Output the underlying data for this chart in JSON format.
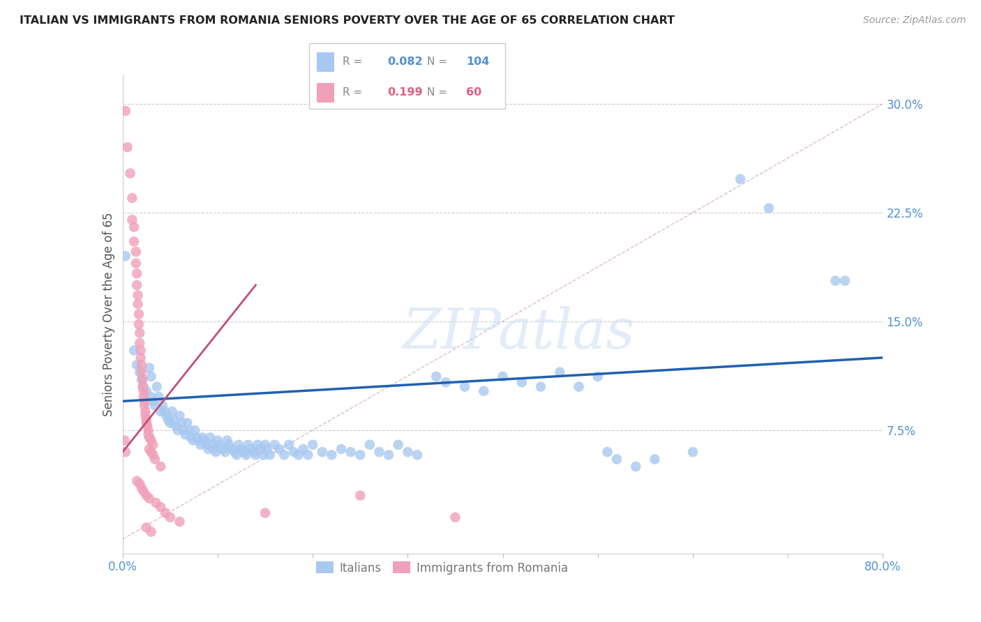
{
  "title": "ITALIAN VS IMMIGRANTS FROM ROMANIA SENIORS POVERTY OVER THE AGE OF 65 CORRELATION CHART",
  "source": "Source: ZipAtlas.com",
  "ylabel": "Seniors Poverty Over the Age of 65",
  "xlim": [
    0.0,
    0.8
  ],
  "ylim": [
    -0.01,
    0.32
  ],
  "ytick_positions": [
    0.075,
    0.15,
    0.225,
    0.3
  ],
  "ytick_labels": [
    "7.5%",
    "15.0%",
    "22.5%",
    "30.0%"
  ],
  "legend_blue_label": "Italians",
  "legend_pink_label": "Immigrants from Romania",
  "R_blue": 0.082,
  "N_blue": 104,
  "R_pink": 0.199,
  "N_pink": 60,
  "color_blue": "#a8c8f0",
  "color_pink": "#f0a0b8",
  "line_blue": "#2060b0",
  "line_pink": "#c05070",
  "watermark": "ZIPatlas",
  "blue_line": [
    [
      0.0,
      0.095
    ],
    [
      0.8,
      0.125
    ]
  ],
  "pink_line": [
    [
      0.0,
      0.06
    ],
    [
      0.14,
      0.175
    ]
  ],
  "diag_line": [
    [
      0.0,
      0.0
    ],
    [
      0.8,
      0.3
    ]
  ],
  "blue_points": [
    [
      0.003,
      0.195
    ],
    [
      0.012,
      0.13
    ],
    [
      0.015,
      0.12
    ],
    [
      0.018,
      0.115
    ],
    [
      0.02,
      0.11
    ],
    [
      0.022,
      0.105
    ],
    [
      0.025,
      0.102
    ],
    [
      0.028,
      0.118
    ],
    [
      0.03,
      0.112
    ],
    [
      0.03,
      0.098
    ],
    [
      0.032,
      0.095
    ],
    [
      0.034,
      0.092
    ],
    [
      0.036,
      0.105
    ],
    [
      0.038,
      0.098
    ],
    [
      0.04,
      0.088
    ],
    [
      0.042,
      0.092
    ],
    [
      0.044,
      0.088
    ],
    [
      0.046,
      0.085
    ],
    [
      0.048,
      0.082
    ],
    [
      0.05,
      0.08
    ],
    [
      0.052,
      0.088
    ],
    [
      0.054,
      0.082
    ],
    [
      0.056,
      0.078
    ],
    [
      0.058,
      0.075
    ],
    [
      0.06,
      0.085
    ],
    [
      0.062,
      0.08
    ],
    [
      0.064,
      0.075
    ],
    [
      0.066,
      0.072
    ],
    [
      0.068,
      0.08
    ],
    [
      0.07,
      0.075
    ],
    [
      0.072,
      0.07
    ],
    [
      0.074,
      0.068
    ],
    [
      0.076,
      0.075
    ],
    [
      0.078,
      0.07
    ],
    [
      0.08,
      0.068
    ],
    [
      0.082,
      0.065
    ],
    [
      0.084,
      0.07
    ],
    [
      0.086,
      0.068
    ],
    [
      0.088,
      0.065
    ],
    [
      0.09,
      0.062
    ],
    [
      0.092,
      0.07
    ],
    [
      0.094,
      0.065
    ],
    [
      0.096,
      0.062
    ],
    [
      0.098,
      0.06
    ],
    [
      0.1,
      0.068
    ],
    [
      0.102,
      0.065
    ],
    [
      0.105,
      0.062
    ],
    [
      0.108,
      0.06
    ],
    [
      0.11,
      0.068
    ],
    [
      0.112,
      0.065
    ],
    [
      0.115,
      0.062
    ],
    [
      0.118,
      0.06
    ],
    [
      0.12,
      0.058
    ],
    [
      0.122,
      0.065
    ],
    [
      0.125,
      0.062
    ],
    [
      0.128,
      0.06
    ],
    [
      0.13,
      0.058
    ],
    [
      0.132,
      0.065
    ],
    [
      0.135,
      0.062
    ],
    [
      0.138,
      0.06
    ],
    [
      0.14,
      0.058
    ],
    [
      0.142,
      0.065
    ],
    [
      0.145,
      0.062
    ],
    [
      0.148,
      0.058
    ],
    [
      0.15,
      0.065
    ],
    [
      0.152,
      0.062
    ],
    [
      0.155,
      0.058
    ],
    [
      0.16,
      0.065
    ],
    [
      0.165,
      0.062
    ],
    [
      0.17,
      0.058
    ],
    [
      0.175,
      0.065
    ],
    [
      0.18,
      0.06
    ],
    [
      0.185,
      0.058
    ],
    [
      0.19,
      0.062
    ],
    [
      0.195,
      0.058
    ],
    [
      0.2,
      0.065
    ],
    [
      0.21,
      0.06
    ],
    [
      0.22,
      0.058
    ],
    [
      0.23,
      0.062
    ],
    [
      0.24,
      0.06
    ],
    [
      0.25,
      0.058
    ],
    [
      0.26,
      0.065
    ],
    [
      0.27,
      0.06
    ],
    [
      0.28,
      0.058
    ],
    [
      0.29,
      0.065
    ],
    [
      0.3,
      0.06
    ],
    [
      0.31,
      0.058
    ],
    [
      0.33,
      0.112
    ],
    [
      0.34,
      0.108
    ],
    [
      0.36,
      0.105
    ],
    [
      0.38,
      0.102
    ],
    [
      0.4,
      0.112
    ],
    [
      0.42,
      0.108
    ],
    [
      0.44,
      0.105
    ],
    [
      0.46,
      0.115
    ],
    [
      0.48,
      0.105
    ],
    [
      0.5,
      0.112
    ],
    [
      0.51,
      0.06
    ],
    [
      0.52,
      0.055
    ],
    [
      0.54,
      0.05
    ],
    [
      0.56,
      0.055
    ],
    [
      0.6,
      0.06
    ],
    [
      0.65,
      0.248
    ],
    [
      0.68,
      0.228
    ],
    [
      0.75,
      0.178
    ],
    [
      0.76,
      0.178
    ]
  ],
  "pink_points": [
    [
      0.003,
      0.295
    ],
    [
      0.005,
      0.27
    ],
    [
      0.008,
      0.252
    ],
    [
      0.01,
      0.235
    ],
    [
      0.01,
      0.22
    ],
    [
      0.012,
      0.215
    ],
    [
      0.012,
      0.205
    ],
    [
      0.014,
      0.198
    ],
    [
      0.014,
      0.19
    ],
    [
      0.015,
      0.183
    ],
    [
      0.015,
      0.175
    ],
    [
      0.016,
      0.168
    ],
    [
      0.016,
      0.162
    ],
    [
      0.017,
      0.155
    ],
    [
      0.017,
      0.148
    ],
    [
      0.018,
      0.142
    ],
    [
      0.018,
      0.135
    ],
    [
      0.019,
      0.13
    ],
    [
      0.019,
      0.125
    ],
    [
      0.02,
      0.12
    ],
    [
      0.02,
      0.115
    ],
    [
      0.021,
      0.11
    ],
    [
      0.021,
      0.105
    ],
    [
      0.022,
      0.102
    ],
    [
      0.022,
      0.098
    ],
    [
      0.023,
      0.095
    ],
    [
      0.023,
      0.092
    ],
    [
      0.024,
      0.088
    ],
    [
      0.024,
      0.085
    ],
    [
      0.025,
      0.082
    ],
    [
      0.025,
      0.08
    ],
    [
      0.026,
      0.078
    ],
    [
      0.027,
      0.075
    ],
    [
      0.027,
      0.072
    ],
    [
      0.028,
      0.07
    ],
    [
      0.03,
      0.068
    ],
    [
      0.032,
      0.065
    ],
    [
      0.028,
      0.062
    ],
    [
      0.03,
      0.06
    ],
    [
      0.032,
      0.058
    ],
    [
      0.034,
      0.055
    ],
    [
      0.04,
      0.05
    ],
    [
      0.015,
      0.04
    ],
    [
      0.018,
      0.038
    ],
    [
      0.02,
      0.035
    ],
    [
      0.022,
      0.033
    ],
    [
      0.025,
      0.03
    ],
    [
      0.028,
      0.028
    ],
    [
      0.035,
      0.025
    ],
    [
      0.04,
      0.022
    ],
    [
      0.045,
      0.018
    ],
    [
      0.05,
      0.015
    ],
    [
      0.06,
      0.012
    ],
    [
      0.025,
      0.008
    ],
    [
      0.03,
      0.005
    ],
    [
      0.15,
      0.018
    ],
    [
      0.25,
      0.03
    ],
    [
      0.35,
      0.015
    ],
    [
      0.002,
      0.068
    ],
    [
      0.003,
      0.06
    ]
  ]
}
